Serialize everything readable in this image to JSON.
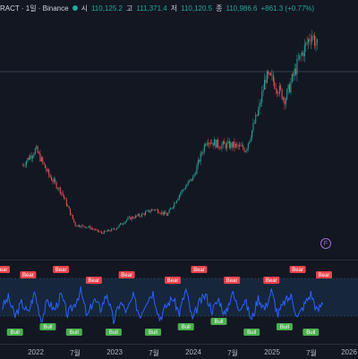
{
  "header": {
    "title": "RACT · 1일 · Binance",
    "open_label": "시",
    "open_value": "110,125.2",
    "high_label": "고",
    "high_value": "111,371.4",
    "low_label": "저",
    "low_value": "110,120.5",
    "close_label": "종",
    "close_value": "110,986.6",
    "change": "+861.3 (+0.77%)",
    "accent_color": "#26a69a"
  },
  "xaxis": {
    "labels": [
      "2022",
      "7월",
      "2023",
      "7월",
      "2024",
      "7월",
      "2025",
      "7월",
      "2026"
    ]
  },
  "chart_data": [
    {
      "type": "line",
      "title": "",
      "series": [
        {
          "x": [
            "2021-11",
            "2022-01",
            "2022-03",
            "2022-05",
            "2022-07",
            "2022-09",
            "2022-11",
            "2023-01",
            "2023-03",
            "2023-05",
            "2023-07",
            "2023-09",
            "2023-11",
            "2024-01",
            "2024-03",
            "2024-05",
            "2024-07",
            "2024-09",
            "2024-11",
            "2024-12",
            "2025-01",
            "2025-03",
            "2025-05",
            "2025-07",
            "2025-08"
          ],
          "y": [
            52000,
            60000,
            47000,
            38000,
            22000,
            21000,
            18000,
            20000,
            25000,
            27000,
            30000,
            27000,
            38000,
            46000,
            65000,
            62000,
            62000,
            60000,
            80000,
            96000,
            95000,
            85000,
            104000,
            118000,
            111000
          ]
        }
      ],
      "up_color": "#26a69a",
      "down_color": "#ef5350"
    },
    {
      "type": "line",
      "title": "",
      "series": [
        {
          "values": [
            48,
            62,
            35,
            55,
            40,
            70,
            30,
            58,
            44,
            66,
            38,
            52,
            72,
            34,
            60,
            46,
            68,
            28,
            56,
            42,
            64,
            36,
            58,
            70,
            32,
            50,
            62,
            40,
            74,
            30,
            54,
            66,
            44,
            60,
            36,
            70,
            48,
            58,
            30,
            62,
            46,
            72,
            38,
            56,
            64,
            34,
            52,
            68,
            42,
            60
          ]
        }
      ],
      "signals": {
        "bear_label": "Bear",
        "bull_label": "Bull",
        "bear_color": "#e8434b",
        "bull_color": "#4caf50",
        "bear_at": [
          0,
          4,
          9,
          14,
          19,
          26,
          30,
          35,
          41,
          45,
          49
        ],
        "bull_at": [
          2,
          7,
          11,
          17,
          23,
          28,
          33,
          38,
          43,
          47
        ]
      }
    }
  ]
}
